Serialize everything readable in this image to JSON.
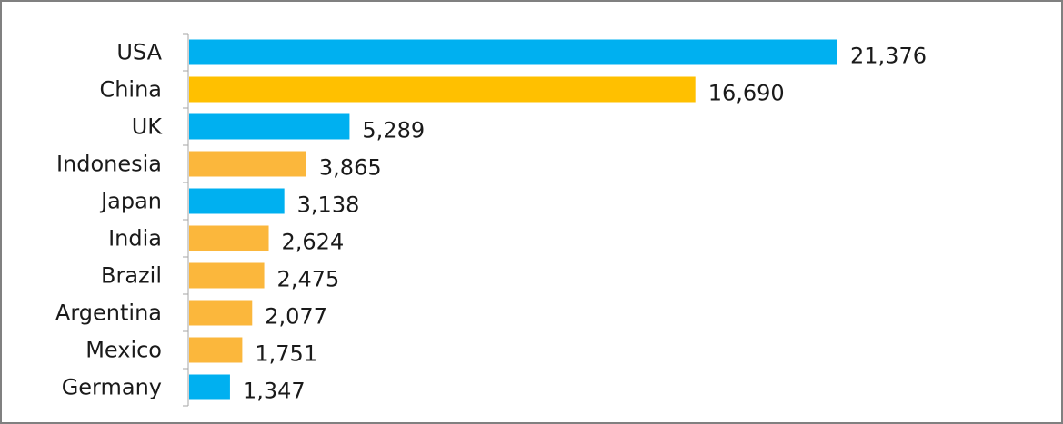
{
  "chart_data": {
    "type": "bar",
    "orientation": "horizontal",
    "title": "",
    "xlabel": "",
    "ylabel": "",
    "categories": [
      "USA",
      "China",
      "UK",
      "Indonesia",
      "Japan",
      "India",
      "Brazil",
      "Argentina",
      "Mexico",
      "Germany"
    ],
    "values": [
      21376,
      16690,
      5289,
      3865,
      3138,
      2624,
      2475,
      2077,
      1751,
      1347
    ],
    "value_labels": [
      "21,376",
      "16,690",
      "5,289",
      "3,865",
      "3,138",
      "2,624",
      "2,475",
      "2,077",
      "1,751",
      "1,347"
    ],
    "bar_colors": [
      "#00b0f0",
      "#ffc000",
      "#00b0f0",
      "#fbb73c",
      "#00b0f0",
      "#fbb73c",
      "#fbb73c",
      "#fbb73c",
      "#fbb73c",
      "#00b0f0"
    ],
    "xlim": [
      0,
      21376
    ],
    "grid": false,
    "legend": "none"
  },
  "colors": {
    "blue": "#00b0f0",
    "gold": "#ffc000",
    "orange": "#fbb73c",
    "axis": "#a6a6a6",
    "frame": "#808080"
  }
}
